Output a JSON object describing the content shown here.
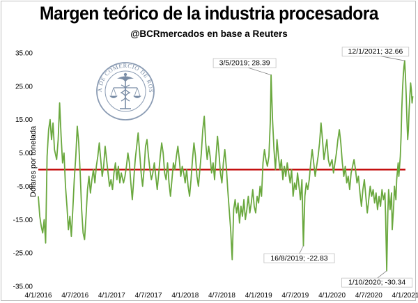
{
  "chart_data": {
    "type": "line",
    "title": "Margen teórico de la industria procesadora",
    "subtitle": "@BCRmercados en base a Reuters",
    "xlabel": "",
    "ylabel": "Dólares por tonelada",
    "ylim": [
      -35,
      35
    ],
    "yticks": [
      35,
      25,
      15,
      5,
      -5,
      -15,
      -25,
      -35
    ],
    "ytick_labels": [
      "35.00",
      "25.00",
      "15.00",
      "5.00",
      "-5.00",
      "-15.00",
      "-25.00",
      "-35.00"
    ],
    "xtick_labels": [
      "4/1/2016",
      "4/7/2016",
      "4/1/2017",
      "4/7/2017",
      "4/1/2018",
      "4/7/2018",
      "4/1/2019",
      "4/7/2019",
      "4/1/2020",
      "4/7/2020",
      "4/1/2021"
    ],
    "x_range_years": [
      2016.0,
      2021.0
    ],
    "reference_line": {
      "y": 0,
      "color": "#c00000"
    },
    "series": [
      {
        "name": "Margen teórico",
        "color": "#6aa83e",
        "points": [
          [
            2016.0,
            -8
          ],
          [
            2016.02,
            -14
          ],
          [
            2016.04,
            -17
          ],
          [
            2016.06,
            -19
          ],
          [
            2016.08,
            -15
          ],
          [
            2016.1,
            -22
          ],
          [
            2016.12,
            4
          ],
          [
            2016.14,
            12
          ],
          [
            2016.16,
            15
          ],
          [
            2016.18,
            9
          ],
          [
            2016.2,
            14
          ],
          [
            2016.22,
            6
          ],
          [
            2016.25,
            3
          ],
          [
            2016.27,
            9
          ],
          [
            2016.29,
            20
          ],
          [
            2016.31,
            10
          ],
          [
            2016.33,
            2
          ],
          [
            2016.35,
            5
          ],
          [
            2016.37,
            -5
          ],
          [
            2016.39,
            -11
          ],
          [
            2016.41,
            -18
          ],
          [
            2016.43,
            -14
          ],
          [
            2016.45,
            -20
          ],
          [
            2016.47,
            -12
          ],
          [
            2016.49,
            -3
          ],
          [
            2016.51,
            4
          ],
          [
            2016.53,
            13
          ],
          [
            2016.55,
            8
          ],
          [
            2016.57,
            -1
          ],
          [
            2016.59,
            -12
          ],
          [
            2016.61,
            -19
          ],
          [
            2016.63,
            -21
          ],
          [
            2016.65,
            -14
          ],
          [
            2016.67,
            -6
          ],
          [
            2016.69,
            -2
          ],
          [
            2016.71,
            -7
          ],
          [
            2016.73,
            -3
          ],
          [
            2016.75,
            0
          ],
          [
            2016.77,
            -4
          ],
          [
            2016.79,
            1
          ],
          [
            2016.81,
            4
          ],
          [
            2016.83,
            8
          ],
          [
            2016.85,
            3
          ],
          [
            2016.87,
            -2
          ],
          [
            2016.89,
            1
          ],
          [
            2016.91,
            7
          ],
          [
            2016.93,
            3
          ],
          [
            2016.95,
            -1
          ],
          [
            2016.97,
            -5
          ],
          [
            2016.99,
            -3
          ],
          [
            2017.01,
            -6
          ],
          [
            2017.03,
            -1
          ],
          [
            2017.05,
            2
          ],
          [
            2017.07,
            -3
          ],
          [
            2017.09,
            1
          ],
          [
            2017.11,
            -4
          ],
          [
            2017.13,
            -1
          ],
          [
            2017.16,
            -4
          ],
          [
            2017.18,
            -2
          ],
          [
            2017.2,
            1
          ],
          [
            2017.22,
            5
          ],
          [
            2017.24,
            2
          ],
          [
            2017.26,
            -4
          ],
          [
            2017.28,
            -9
          ],
          [
            2017.3,
            -3
          ],
          [
            2017.32,
            3
          ],
          [
            2017.34,
            7
          ],
          [
            2017.36,
            11
          ],
          [
            2017.38,
            5
          ],
          [
            2017.4,
            -1
          ],
          [
            2017.42,
            -5
          ],
          [
            2017.44,
            0
          ],
          [
            2017.46,
            7
          ],
          [
            2017.48,
            9
          ],
          [
            2017.5,
            4
          ],
          [
            2017.52,
            0
          ],
          [
            2017.54,
            -3
          ],
          [
            2017.56,
            -1
          ],
          [
            2017.58,
            2
          ],
          [
            2017.6,
            -2
          ],
          [
            2017.62,
            -6
          ],
          [
            2017.64,
            -1
          ],
          [
            2017.66,
            4
          ],
          [
            2017.68,
            8
          ],
          [
            2017.7,
            5
          ],
          [
            2017.72,
            -1
          ],
          [
            2017.74,
            -3
          ],
          [
            2017.76,
            2
          ],
          [
            2017.78,
            -4
          ],
          [
            2017.8,
            -8
          ],
          [
            2017.82,
            -3
          ],
          [
            2017.84,
            2
          ],
          [
            2017.86,
            0
          ],
          [
            2017.88,
            4
          ],
          [
            2017.9,
            7
          ],
          [
            2017.92,
            3
          ],
          [
            2017.94,
            -2
          ],
          [
            2017.96,
            1
          ],
          [
            2017.98,
            -1
          ],
          [
            2018.0,
            -4
          ],
          [
            2018.02,
            0
          ],
          [
            2018.04,
            -5
          ],
          [
            2018.06,
            -8
          ],
          [
            2018.08,
            -3
          ],
          [
            2018.1,
            3
          ],
          [
            2018.12,
            8
          ],
          [
            2018.14,
            4
          ],
          [
            2018.16,
            -2
          ],
          [
            2018.18,
            -5
          ],
          [
            2018.2,
            0
          ],
          [
            2018.22,
            5
          ],
          [
            2018.24,
            12
          ],
          [
            2018.26,
            16
          ],
          [
            2018.28,
            8
          ],
          [
            2018.3,
            3
          ],
          [
            2018.32,
            7
          ],
          [
            2018.34,
            4
          ],
          [
            2018.36,
            -1
          ],
          [
            2018.38,
            2
          ],
          [
            2018.4,
            -3
          ],
          [
            2018.42,
            4
          ],
          [
            2018.44,
            10
          ],
          [
            2018.46,
            5
          ],
          [
            2018.48,
            -1
          ],
          [
            2018.5,
            -4
          ],
          [
            2018.52,
            2
          ],
          [
            2018.54,
            6
          ],
          [
            2018.56,
            1
          ],
          [
            2018.58,
            -6
          ],
          [
            2018.6,
            -12
          ],
          [
            2018.62,
            -18
          ],
          [
            2018.64,
            -27
          ],
          [
            2018.66,
            -12
          ],
          [
            2018.68,
            -9
          ],
          [
            2018.7,
            -13
          ],
          [
            2018.72,
            -10
          ],
          [
            2018.74,
            -16
          ],
          [
            2018.76,
            -11
          ],
          [
            2018.78,
            -14
          ],
          [
            2018.8,
            -9
          ],
          [
            2018.82,
            -15
          ],
          [
            2018.84,
            -12
          ],
          [
            2018.86,
            -8
          ],
          [
            2018.88,
            -13
          ],
          [
            2018.9,
            -10
          ],
          [
            2018.92,
            -6
          ],
          [
            2018.94,
            -11
          ],
          [
            2018.96,
            -13
          ],
          [
            2018.98,
            -8
          ],
          [
            2019.0,
            -10
          ],
          [
            2019.02,
            -5
          ],
          [
            2019.04,
            -8
          ],
          [
            2019.06,
            2
          ],
          [
            2019.08,
            6
          ],
          [
            2019.1,
            3
          ],
          [
            2019.12,
            1
          ],
          [
            2019.14,
            4
          ],
          [
            2019.16,
            15
          ],
          [
            2019.17,
            28.39
          ],
          [
            2019.19,
            15
          ],
          [
            2019.21,
            6
          ],
          [
            2019.23,
            0
          ],
          [
            2019.25,
            9
          ],
          [
            2019.27,
            4
          ],
          [
            2019.29,
            0
          ],
          [
            2019.31,
            3
          ],
          [
            2019.33,
            -3
          ],
          [
            2019.35,
            1
          ],
          [
            2019.37,
            -2
          ],
          [
            2019.39,
            2
          ],
          [
            2019.41,
            -1
          ],
          [
            2019.43,
            -4
          ],
          [
            2019.45,
            0
          ],
          [
            2019.47,
            -8
          ],
          [
            2019.49,
            -4
          ],
          [
            2019.51,
            -6
          ],
          [
            2019.53,
            -1
          ],
          [
            2019.55,
            -5
          ],
          [
            2019.57,
            -9
          ],
          [
            2019.59,
            -3
          ],
          [
            2019.61,
            -22.83
          ],
          [
            2019.63,
            -8
          ],
          [
            2019.65,
            -4
          ],
          [
            2019.67,
            -6
          ],
          [
            2019.69,
            -3
          ],
          [
            2019.71,
            2
          ],
          [
            2019.73,
            6
          ],
          [
            2019.75,
            2
          ],
          [
            2019.77,
            -2
          ],
          [
            2019.79,
            1
          ],
          [
            2019.81,
            4
          ],
          [
            2019.83,
            8
          ],
          [
            2019.85,
            14
          ],
          [
            2019.87,
            9
          ],
          [
            2019.89,
            3
          ],
          [
            2019.91,
            6
          ],
          [
            2019.93,
            9
          ],
          [
            2019.95,
            3
          ],
          [
            2019.97,
            1
          ],
          [
            2020.0,
            3
          ],
          [
            2020.02,
            -1
          ],
          [
            2020.04,
            2
          ],
          [
            2020.06,
            5
          ],
          [
            2020.08,
            9
          ],
          [
            2020.1,
            12
          ],
          [
            2020.12,
            8
          ],
          [
            2020.14,
            2
          ],
          [
            2020.16,
            -2
          ],
          [
            2020.18,
            1
          ],
          [
            2020.2,
            -4
          ],
          [
            2020.22,
            -2
          ],
          [
            2020.24,
            -6
          ],
          [
            2020.26,
            -1
          ],
          [
            2020.28,
            1
          ],
          [
            2020.3,
            3
          ],
          [
            2020.32,
            0
          ],
          [
            2020.34,
            -4
          ],
          [
            2020.36,
            -2
          ],
          [
            2020.38,
            -7
          ],
          [
            2020.4,
            -11
          ],
          [
            2020.42,
            -6
          ],
          [
            2020.44,
            -3
          ],
          [
            2020.46,
            -8
          ],
          [
            2020.48,
            -13
          ],
          [
            2020.5,
            -9
          ],
          [
            2020.52,
            -5
          ],
          [
            2020.54,
            -8
          ],
          [
            2020.56,
            -6
          ],
          [
            2020.58,
            -10
          ],
          [
            2020.6,
            -7
          ],
          [
            2020.62,
            -12
          ],
          [
            2020.64,
            -8
          ],
          [
            2020.66,
            -11
          ],
          [
            2020.68,
            -6
          ],
          [
            2020.7,
            -9
          ],
          [
            2020.72,
            -7
          ],
          [
            2020.73,
            -14
          ],
          [
            2020.745,
            -30.34
          ],
          [
            2020.76,
            -13
          ],
          [
            2020.77,
            -6
          ],
          [
            2020.79,
            -12
          ],
          [
            2020.81,
            -7
          ],
          [
            2020.82,
            -18
          ],
          [
            2020.84,
            -11
          ],
          [
            2020.85,
            -5
          ],
          [
            2020.87,
            -9
          ],
          [
            2020.88,
            -3
          ],
          [
            2020.9,
            2
          ],
          [
            2020.91,
            -2
          ],
          [
            2020.93,
            4
          ],
          [
            2020.94,
            10
          ],
          [
            2020.95,
            18
          ],
          [
            2020.96,
            24
          ],
          [
            2020.97,
            28
          ],
          [
            2020.98,
            31
          ],
          [
            2020.99,
            32.66
          ],
          [
            2021.0,
            28
          ],
          [
            2021.01,
            22
          ],
          [
            2021.02,
            15
          ],
          [
            2021.03,
            9
          ],
          [
            2021.04,
            12
          ],
          [
            2021.05,
            18
          ],
          [
            2021.06,
            22
          ],
          [
            2021.07,
            26
          ],
          [
            2021.08,
            24
          ],
          [
            2021.09,
            20
          ],
          [
            2021.1,
            22
          ]
        ]
      }
    ],
    "annotations": [
      {
        "label": "3/5/2019; 28.39",
        "x": 2019.17,
        "y": 28.39
      },
      {
        "label": "12/1/2021; 32.66",
        "x": 2020.99,
        "y": 32.66
      },
      {
        "label": "16/8/2019; -22.83",
        "x": 2019.61,
        "y": -22.83
      },
      {
        "label": "1/10/2020; -30.34",
        "x": 2020.745,
        "y": -30.34
      }
    ]
  },
  "logo": {
    "name": "Bolsa de Comercio de Rosario seal",
    "text": "BOLSA DE COMERCIO DE ROSARIO",
    "color": "#7a8da6"
  }
}
